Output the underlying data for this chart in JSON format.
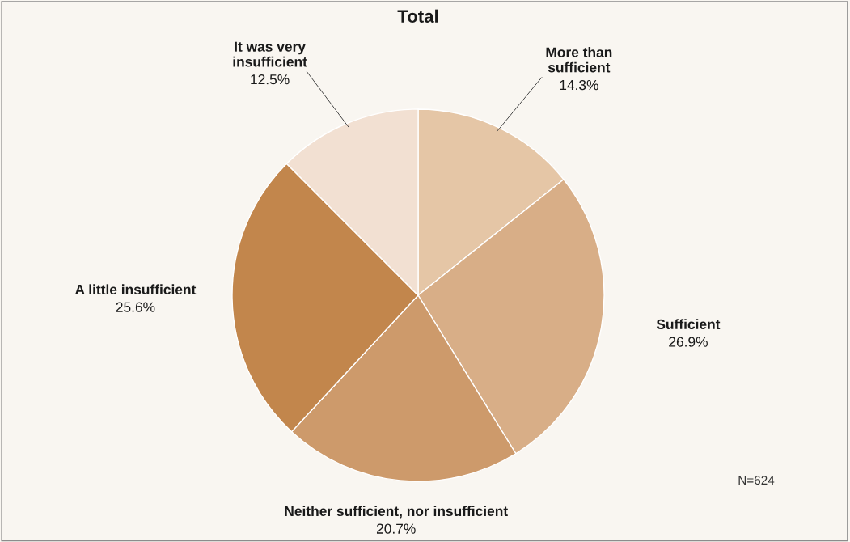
{
  "chart_data": {
    "type": "pie",
    "title": "Total",
    "categories": [
      "More than\nsufficient",
      "Sufficient",
      "Neither sufficient, nor insufficient",
      "A little insufficient",
      "It was very\ninsufficient"
    ],
    "values": [
      14.3,
      26.9,
      20.7,
      25.6,
      12.5
    ],
    "value_labels": [
      "14.3%",
      "26.9%",
      "20.7%",
      "25.6%",
      "12.5%"
    ],
    "colors": [
      "#e5c6a6",
      "#d8ae87",
      "#cd9a6b",
      "#c2864c",
      "#f2e0d2"
    ],
    "annotations": [
      "N=624"
    ],
    "legend": false
  }
}
